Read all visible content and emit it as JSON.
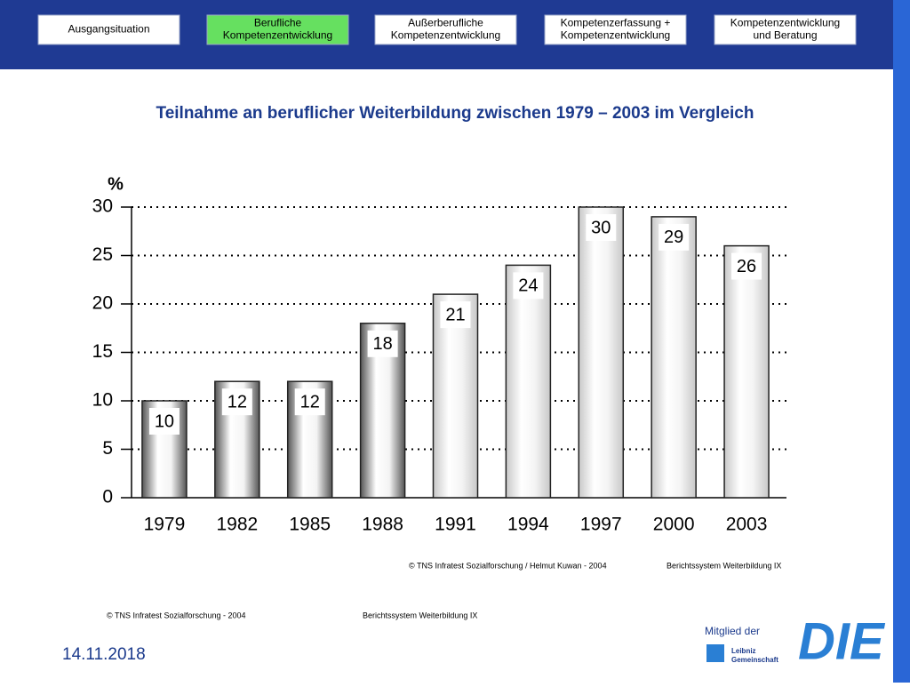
{
  "nav": [
    [
      "Ausgangsituation"
    ],
    [
      "Berufliche",
      "Kompetenzentwicklung"
    ],
    [
      "Außerberufliche",
      "Kompetenzentwicklung"
    ],
    [
      "Kompetenzerfassung +",
      "Kompetenzentwicklung"
    ],
    [
      "Kompetenzentwicklung",
      "und Beratung"
    ]
  ],
  "chart_data": {
    "type": "bar",
    "title": "Teilnahme an beruflicher Weiterbildung zwischen 1979 – 2003 im Vergleich",
    "ylabel": "%",
    "categories": [
      "1979",
      "1982",
      "1985",
      "1988",
      "1991",
      "1994",
      "1997",
      "2000",
      "2003"
    ],
    "values": [
      10,
      12,
      12,
      18,
      21,
      24,
      30,
      29,
      26
    ],
    "colors": [
      "#555555",
      "#555555",
      "#555555",
      "#555555",
      "#c8c8c8",
      "#c8c8c8",
      "#c8c8c8",
      "#c8c8c8",
      "#c8c8c8"
    ],
    "ylim": [
      0,
      30
    ],
    "yticks": [
      0,
      5,
      10,
      15,
      20,
      25,
      30
    ],
    "grid": true,
    "sources": [
      "© TNS Infratest Sozialforschung / Helmut Kuwan - 2004",
      "Berichtssystem Weiterbildung IX"
    ]
  },
  "footer": [
    "© TNS Infratest Sozialforschung - 2004",
    "Berichtssystem Weiterbildung IX"
  ],
  "date": "14.11.2018",
  "member": "Mitglied der",
  "logo": "DIE",
  "leibniz": [
    "Leibniz",
    "Gemeinschaft"
  ]
}
